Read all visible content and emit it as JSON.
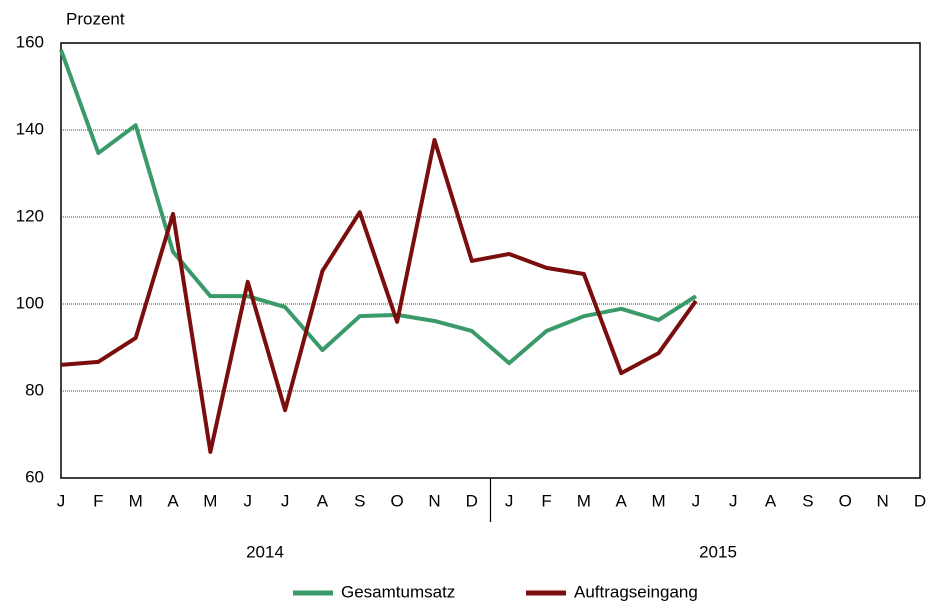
{
  "chart_data": {
    "type": "line",
    "y_label": "Prozent",
    "categories": [
      "J",
      "F",
      "M",
      "A",
      "M",
      "J",
      "J",
      "A",
      "S",
      "O",
      "N",
      "D",
      "J",
      "F",
      "M",
      "A",
      "M",
      "J",
      "J",
      "A",
      "S",
      "O",
      "N",
      "D"
    ],
    "year_labels": [
      "2014",
      "2015"
    ],
    "series": [
      {
        "name": "Gesamtumsatz",
        "color": "#3a9a6a",
        "values": [
          158.4,
          134.7,
          141.1,
          112,
          101.8,
          101.8,
          99.3,
          89.4,
          97.2,
          97.5,
          96.1,
          93.8,
          86.4,
          93.8,
          97.2,
          98.9,
          96.3,
          101.8,
          null,
          null,
          null,
          null,
          null,
          null
        ]
      },
      {
        "name": "Auftragseingang",
        "color": "#7b0d0d",
        "values": [
          86,
          86.7,
          92.2,
          120.7,
          66,
          105.1,
          75.6,
          107.6,
          121.1,
          95.9,
          137.7,
          109.9,
          111.5,
          108.3,
          106.9,
          84.1,
          88.7,
          100.7,
          null,
          null,
          null,
          null,
          null,
          null
        ]
      }
    ],
    "ylim": [
      60,
      160
    ],
    "yticks": [
      60,
      80,
      100,
      120,
      140,
      160
    ],
    "grid": true
  }
}
